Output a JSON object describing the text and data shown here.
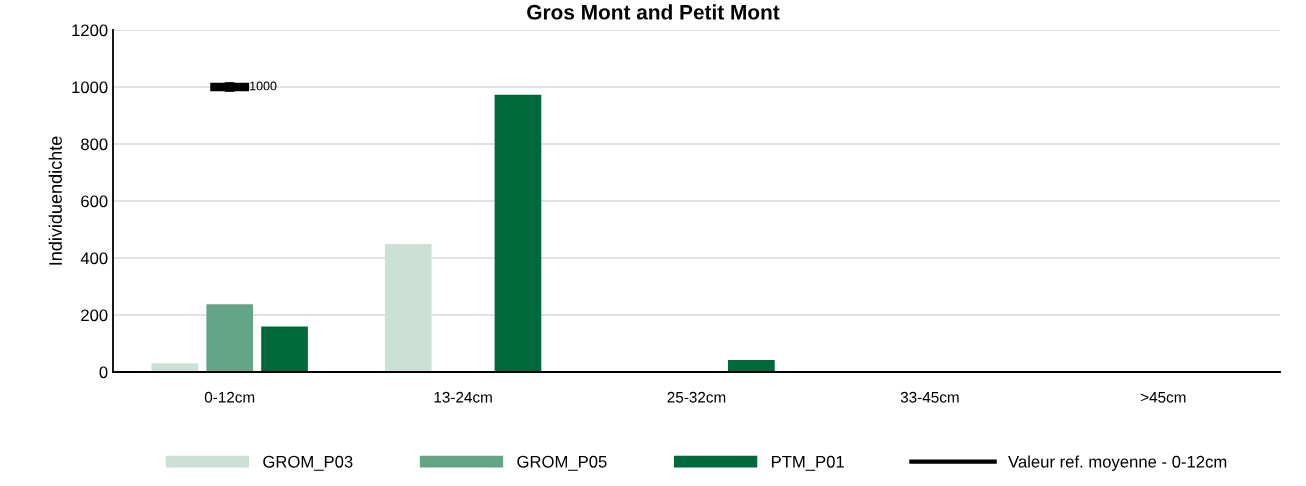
{
  "chart_data": {
    "type": "bar",
    "title": "Gros Mont and Petit Mont",
    "ylabel": "Individuendichte",
    "categories": [
      "0-12cm",
      "13-24cm",
      "25-32cm",
      "33-45cm",
      ">45cm"
    ],
    "series": [
      {
        "name": "GROM_P03",
        "color": "#cce1d6",
        "values": [
          31,
          449,
          0,
          0,
          0
        ]
      },
      {
        "name": "GROM_P05",
        "color": "#65a587",
        "values": [
          238,
          0,
          0,
          0,
          0
        ]
      },
      {
        "name": "PTM_P01",
        "color": "#00693b",
        "values": [
          160,
          973,
          42,
          0,
          0
        ]
      },
      {
        "name": "Valeur ref. moyenne - 0-12cm",
        "type": "line",
        "color": "#000000",
        "marker": "square",
        "values": [
          1000,
          null,
          null,
          null,
          null
        ],
        "value_labels": [
          "1000",
          null,
          null,
          null,
          null
        ]
      }
    ],
    "ylim": [
      0,
      1200
    ],
    "yticks": [
      0,
      200,
      400,
      600,
      800,
      1000,
      1200
    ],
    "grid": "y",
    "legend": "bottom"
  }
}
